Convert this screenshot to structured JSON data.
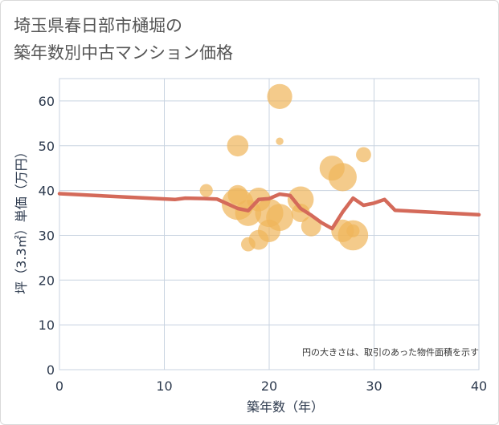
{
  "header": {
    "title_line1": "埼玉県春日部市樋堀の",
    "title_line2": "築年数別中古マンション価格"
  },
  "colors": {
    "bubble": "#f0b55a",
    "line": "#d46a5a",
    "grid": "#c8d3e0",
    "axis": "#2d3a4e"
  },
  "chart_data": {
    "type": "scatter",
    "xlabel": "築年数（年）",
    "ylabel": "坪（3.3㎡）単価（万円）",
    "xlim": [
      0,
      40
    ],
    "ylim": [
      0,
      65
    ],
    "xticks": [
      0,
      10,
      20,
      30,
      40
    ],
    "yticks": [
      0,
      10,
      20,
      30,
      40,
      50,
      60
    ],
    "grid": true,
    "note": "円の大きさは、取引のあった物件面積を示す",
    "bubbles": [
      {
        "x": 21,
        "y": 61,
        "size": 55
      },
      {
        "x": 17,
        "y": 50,
        "size": 40
      },
      {
        "x": 21,
        "y": 51,
        "size": 5
      },
      {
        "x": 29,
        "y": 48,
        "size": 20
      },
      {
        "x": 14,
        "y": 40,
        "size": 15
      },
      {
        "x": 17,
        "y": 39,
        "size": 35
      },
      {
        "x": 17,
        "y": 37,
        "size": 90
      },
      {
        "x": 18,
        "y": 35,
        "size": 60
      },
      {
        "x": 19,
        "y": 38,
        "size": 50
      },
      {
        "x": 20,
        "y": 35,
        "size": 70
      },
      {
        "x": 20,
        "y": 31,
        "size": 45
      },
      {
        "x": 21,
        "y": 34,
        "size": 65
      },
      {
        "x": 19,
        "y": 29,
        "size": 35
      },
      {
        "x": 18,
        "y": 28,
        "size": 18
      },
      {
        "x": 23,
        "y": 38,
        "size": 60
      },
      {
        "x": 23,
        "y": 35,
        "size": 30
      },
      {
        "x": 24,
        "y": 32,
        "size": 35
      },
      {
        "x": 26,
        "y": 45,
        "size": 55
      },
      {
        "x": 27,
        "y": 43,
        "size": 70
      },
      {
        "x": 27,
        "y": 31,
        "size": 45
      },
      {
        "x": 28,
        "y": 30,
        "size": 80
      },
      {
        "x": 28,
        "y": 31,
        "size": 15
      }
    ],
    "trend": {
      "x": [
        0,
        11,
        12,
        14,
        15,
        17,
        18,
        19,
        20,
        21,
        22,
        23,
        24,
        25,
        26,
        27,
        28,
        29,
        30,
        31,
        32,
        40
      ],
      "y": [
        39.3,
        38,
        38.3,
        38.2,
        38.1,
        36,
        35.5,
        38,
        38.2,
        39.2,
        38.9,
        36,
        34.5,
        32.8,
        31.5,
        35.2,
        38.3,
        36.7,
        37.2,
        38,
        35.6,
        34.6
      ]
    }
  }
}
